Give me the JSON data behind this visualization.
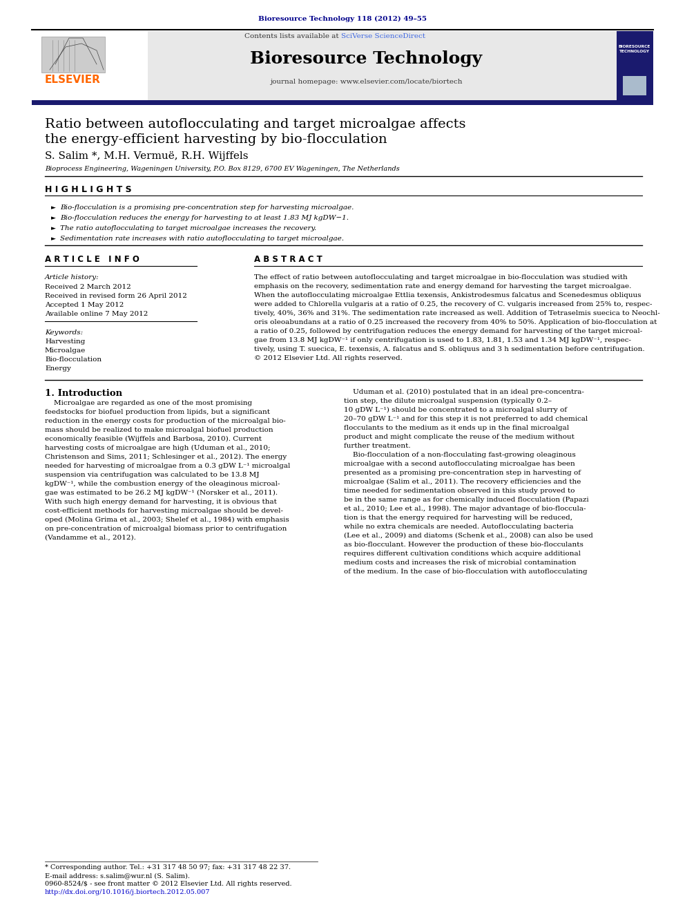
{
  "page_bg": "#ffffff",
  "header_journal_cite": "Bioresource Technology 118 (2012) 49–55",
  "header_cite_color": "#00008B",
  "journal_name": "Bioresource Technology",
  "contents_text": "Contents lists available at ",
  "sciverse_text": "SciVerse ScienceDirect",
  "homepage_text": "journal homepage: www.elsevier.com/locate/biortech",
  "header_bg": "#e8e8e8",
  "header_bar_color": "#1a1a6e",
  "elsevier_color": "#FF6600",
  "elsevier_text": "ELSEVIER",
  "paper_title_line1": "Ratio between autoflocculating and target microalgae affects",
  "paper_title_line2": "the energy-efficient harvesting by bio-flocculation",
  "authors": "S. Salim *, M.H. Vermuë, R.H. Wijffels",
  "affiliation": "Bioprocess Engineering, Wageningen University, P.O. Box 8129, 6700 EV Wageningen, The Netherlands",
  "highlights_title": "H I G H L I G H T S",
  "highlights": [
    "Bio-flocculation is a promising pre-concentration step for harvesting microalgae.",
    "Bio-flocculation reduces the energy for harvesting to at least 1.83 MJ kgDW−1.",
    "The ratio autoflocculating to target microalgae increases the recovery.",
    "Sedimentation rate increases with ratio autoflocculating to target microalgae."
  ],
  "article_info_title": "A R T I C L E   I N F O",
  "article_history_label": "Article history:",
  "article_history": [
    "Received 2 March 2012",
    "Received in revised form 26 April 2012",
    "Accepted 1 May 2012",
    "Available online 7 May 2012"
  ],
  "keywords_label": "Keywords:",
  "keywords": [
    "Harvesting",
    "Microalgae",
    "Bio-flocculation",
    "Energy"
  ],
  "abstract_title": "A B S T R A C T",
  "intro_title": "1. Introduction",
  "footnote_star": "* Corresponding author. Tel.: +31 317 48 50 97; fax: +31 317 48 22 37.",
  "footnote_email": "E-mail address: s.salim@wur.nl (S. Salim).",
  "issn_line": "0960-8524/$ - see front matter © 2012 Elsevier Ltd. All rights reserved.",
  "doi_line": "http://dx.doi.org/10.1016/j.biortech.2012.05.007",
  "abstract_lines": [
    "The effect of ratio between autoflocculating and target microalgae in bio-flocculation was studied with",
    "emphasis on the recovery, sedimentation rate and energy demand for harvesting the target microalgae.",
    "When the autoflocculating microalgae Ettlia texensis, Ankistrodesmus falcatus and Scenedesmus obliquus",
    "were added to Chlorella vulgaris at a ratio of 0.25, the recovery of C. vulgaris increased from 25% to, respec-",
    "tively, 40%, 36% and 31%. The sedimentation rate increased as well. Addition of Tetraselmis suecica to Neochl-",
    "oris oleoabundans at a ratio of 0.25 increased the recovery from 40% to 50%. Application of bio-flocculation at",
    "a ratio of 0.25, followed by centrifugation reduces the energy demand for harvesting of the target microal-",
    "gae from 13.8 MJ kgDW⁻¹ if only centrifugation is used to 1.83, 1.81, 1.53 and 1.34 MJ kgDW⁻¹, respec-",
    "tively, using T. suecica, E. texensis, A. falcatus and S. obliquus and 3 h sedimentation before centrifugation.",
    "© 2012 Elsevier Ltd. All rights reserved."
  ],
  "intro_col1_lines": [
    "    Microalgae are regarded as one of the most promising",
    "feedstocks for biofuel production from lipids, but a significant",
    "reduction in the energy costs for production of the microalgal bio-",
    "mass should be realized to make microalgal biofuel production",
    "economically feasible (Wijffels and Barbosa, 2010). Current",
    "harvesting costs of microalgae are high (Uduman et al., 2010;",
    "Christenson and Sims, 2011; Schlesinger et al., 2012). The energy",
    "needed for harvesting of microalgae from a 0.3 gDW L⁻¹ microalgal",
    "suspension via centrifugation was calculated to be 13.8 MJ",
    "kgDW⁻¹, while the combustion energy of the oleaginous microal-",
    "gae was estimated to be 26.2 MJ kgDW⁻¹ (Norsker et al., 2011).",
    "With such high energy demand for harvesting, it is obvious that",
    "cost-efficient methods for harvesting microalgae should be devel-",
    "oped (Molina Grima et al., 2003; Shelef et al., 1984) with emphasis",
    "on pre-concentration of microalgal biomass prior to centrifugation",
    "(Vandamme et al., 2012)."
  ],
  "intro_col2_lines": [
    "    Uduman et al. (2010) postulated that in an ideal pre-concentra-",
    "tion step, the dilute microalgal suspension (typically 0.2–",
    "10 gDW L⁻¹) should be concentrated to a microalgal slurry of",
    "20–70 gDW L⁻¹ and for this step it is not preferred to add chemical",
    "flocculants to the medium as it ends up in the final microalgal",
    "product and might complicate the reuse of the medium without",
    "further treatment.",
    "    Bio-flocculation of a non-flocculating fast-growing oleaginous",
    "microalgae with a second autoflocculating microalgae has been",
    "presented as a promising pre-concentration step in harvesting of",
    "microalgae (Salim et al., 2011). The recovery efficiencies and the",
    "time needed for sedimentation observed in this study proved to",
    "be in the same range as for chemically induced flocculation (Papazi",
    "et al., 2010; Lee et al., 1998). The major advantage of bio-floccula-",
    "tion is that the energy required for harvesting will be reduced,",
    "while no extra chemicals are needed. Autoflocculating bacteria",
    "(Lee et al., 2009) and diatoms (Schenk et al., 2008) can also be used",
    "as bio-flocculant. However the production of these bio-flocculants",
    "requires different cultivation conditions which acquire additional",
    "medium costs and increases the risk of microbial contamination",
    "of the medium. In the case of bio-flocculation with autoflocculating"
  ]
}
